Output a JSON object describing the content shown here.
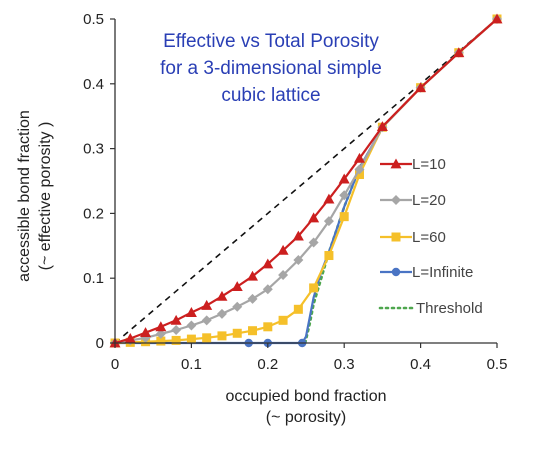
{
  "chart_data": {
    "type": "line",
    "title": [
      "Effective vs Total Porosity",
      "for a 3-dimensional simple",
      "cubic lattice"
    ],
    "xlabel": [
      "occupied bond fraction",
      "(~ porosity)"
    ],
    "ylabel": [
      "accessible bond fraction",
      "(~ effective porosity )"
    ],
    "xlim": [
      0,
      0.5
    ],
    "ylim": [
      0,
      0.5
    ],
    "xticks": [
      "0",
      "0.1",
      "0.2",
      "0.3",
      "0.4",
      "0.5"
    ],
    "yticks": [
      "0",
      "0.1",
      "0.2",
      "0.3",
      "0.4",
      "0.5"
    ],
    "grid": false,
    "legend_position": "right",
    "reference_line": {
      "style": "dashed",
      "color": "#111111",
      "points": [
        [
          0,
          0
        ],
        [
          0.5,
          0.5
        ]
      ]
    },
    "series": [
      {
        "name": "L=10",
        "color": "#cc1f1f",
        "marker": "triangle",
        "style": "solid",
        "points": [
          [
            0,
            0
          ],
          [
            0.02,
            0.007
          ],
          [
            0.04,
            0.016
          ],
          [
            0.06,
            0.025
          ],
          [
            0.08,
            0.035
          ],
          [
            0.1,
            0.047
          ],
          [
            0.12,
            0.058
          ],
          [
            0.14,
            0.072
          ],
          [
            0.16,
            0.087
          ],
          [
            0.18,
            0.103
          ],
          [
            0.2,
            0.122
          ],
          [
            0.22,
            0.143
          ],
          [
            0.24,
            0.165
          ],
          [
            0.26,
            0.193
          ],
          [
            0.28,
            0.222
          ],
          [
            0.3,
            0.253
          ],
          [
            0.32,
            0.285
          ],
          [
            0.35,
            0.334
          ],
          [
            0.4,
            0.394
          ],
          [
            0.45,
            0.448
          ],
          [
            0.5,
            0.5
          ]
        ]
      },
      {
        "name": "L=20",
        "color": "#a6a6a6",
        "marker": "diamond",
        "style": "solid",
        "points": [
          [
            0,
            0
          ],
          [
            0.02,
            0.004
          ],
          [
            0.04,
            0.008
          ],
          [
            0.06,
            0.014
          ],
          [
            0.08,
            0.02
          ],
          [
            0.1,
            0.027
          ],
          [
            0.12,
            0.035
          ],
          [
            0.14,
            0.045
          ],
          [
            0.16,
            0.056
          ],
          [
            0.18,
            0.068
          ],
          [
            0.2,
            0.083
          ],
          [
            0.22,
            0.105
          ],
          [
            0.24,
            0.128
          ],
          [
            0.26,
            0.155
          ],
          [
            0.28,
            0.188
          ],
          [
            0.3,
            0.228
          ],
          [
            0.32,
            0.268
          ],
          [
            0.35,
            0.333
          ],
          [
            0.4,
            0.394
          ],
          [
            0.45,
            0.448
          ],
          [
            0.5,
            0.5
          ]
        ]
      },
      {
        "name": "L=60",
        "color": "#f5c02a",
        "marker": "square",
        "style": "solid",
        "points": [
          [
            0,
            0
          ],
          [
            0.02,
            0.001
          ],
          [
            0.04,
            0.002
          ],
          [
            0.06,
            0.003
          ],
          [
            0.08,
            0.004
          ],
          [
            0.1,
            0.006
          ],
          [
            0.12,
            0.008
          ],
          [
            0.14,
            0.011
          ],
          [
            0.16,
            0.015
          ],
          [
            0.18,
            0.019
          ],
          [
            0.2,
            0.025
          ],
          [
            0.22,
            0.035
          ],
          [
            0.24,
            0.052
          ],
          [
            0.26,
            0.085
          ],
          [
            0.28,
            0.135
          ],
          [
            0.3,
            0.195
          ],
          [
            0.32,
            0.26
          ],
          [
            0.35,
            0.333
          ],
          [
            0.4,
            0.394
          ],
          [
            0.45,
            0.448
          ],
          [
            0.5,
            0.5
          ]
        ]
      },
      {
        "name": "L=Infinite",
        "color": "#4a74c4",
        "marker": "circle",
        "style": "solid",
        "points": [
          [
            0,
            0
          ],
          [
            0.05,
            0
          ],
          [
            0.1,
            0
          ],
          [
            0.15,
            0
          ],
          [
            0.175,
            0
          ],
          [
            0.2,
            0
          ],
          [
            0.245,
            0
          ],
          [
            0.25,
            0.01
          ],
          [
            0.255,
            0.04
          ],
          [
            0.26,
            0.07
          ],
          [
            0.27,
            0.11
          ],
          [
            0.28,
            0.14
          ],
          [
            0.3,
            0.21
          ],
          [
            0.32,
            0.27
          ],
          [
            0.35,
            0.333
          ],
          [
            0.4,
            0.394
          ],
          [
            0.45,
            0.448
          ],
          [
            0.5,
            0.5
          ]
        ],
        "marked_points": [
          [
            0,
            0
          ],
          [
            0.175,
            0
          ],
          [
            0.2,
            0
          ],
          [
            0.245,
            0
          ],
          [
            0.35,
            0.333
          ],
          [
            0.4,
            0.394
          ],
          [
            0.45,
            0.448
          ],
          [
            0.5,
            0.5
          ]
        ]
      },
      {
        "name": "Threshold",
        "color": "#4ea64e",
        "marker": "none",
        "style": "dotted",
        "points": [
          [
            0.249,
            0
          ],
          [
            0.255,
            0.03
          ],
          [
            0.26,
            0.06
          ],
          [
            0.27,
            0.1
          ],
          [
            0.28,
            0.14
          ],
          [
            0.29,
            0.175
          ],
          [
            0.3,
            0.21
          ],
          [
            0.31,
            0.24
          ],
          [
            0.32,
            0.27
          ],
          [
            0.33,
            0.29
          ],
          [
            0.34,
            0.31
          ],
          [
            0.35,
            0.333
          ]
        ]
      }
    ]
  }
}
